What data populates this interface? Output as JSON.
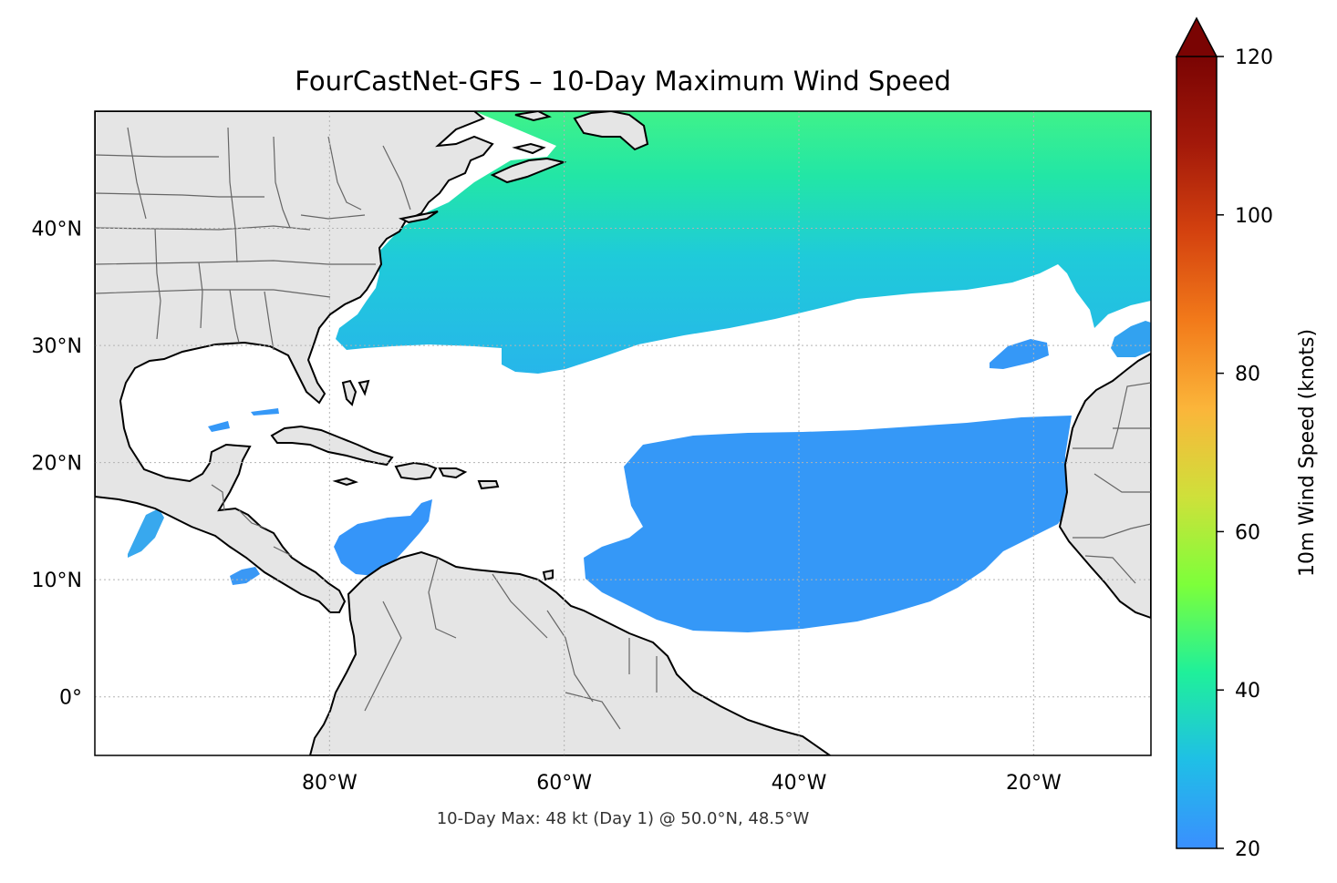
{
  "title": "FourCastNet-GFS – 10-Day Maximum Wind Speed",
  "footer": "10-Day Max: 48 kt (Day 1) @ 50.0°N, 48.5°W",
  "map": {
    "extent_lon": [
      -100,
      -10
    ],
    "extent_lat": [
      -5,
      50
    ],
    "gridlines": true,
    "lon_ticks": [
      {
        "value": -80,
        "label": "80°W"
      },
      {
        "value": -60,
        "label": "60°W"
      },
      {
        "value": -40,
        "label": "40°W"
      },
      {
        "value": -20,
        "label": "20°W"
      }
    ],
    "lat_ticks": [
      {
        "value": 40,
        "label": "40°N"
      },
      {
        "value": 30,
        "label": "30°N"
      },
      {
        "value": 20,
        "label": "20°N"
      },
      {
        "value": 10,
        "label": "10°N"
      },
      {
        "value": 0,
        "label": "0°"
      }
    ],
    "colors": {
      "land": "#e5e5e5",
      "coast": "#000000",
      "borders": "#666666",
      "ocean": "#ffffff"
    }
  },
  "colorbar": {
    "label": "10m Wind Speed (knots)",
    "min": 20,
    "max": 120,
    "extend": "max",
    "ticks": [
      {
        "value": 20,
        "label": "20"
      },
      {
        "value": 40,
        "label": "40"
      },
      {
        "value": 60,
        "label": "60"
      },
      {
        "value": 80,
        "label": "80"
      },
      {
        "value": 100,
        "label": "100"
      },
      {
        "value": 120,
        "label": "120"
      }
    ],
    "colormap": [
      "#3a8fff",
      "#1fbfe6",
      "#1ff09a",
      "#7dff3a",
      "#cfe03a",
      "#fbb53a",
      "#f27a1a",
      "#d4420f",
      "#a3190a",
      "#7a0403"
    ]
  },
  "chart_data": {
    "type": "heatmap",
    "title": "FourCastNet-GFS – 10-Day Maximum Wind Speed",
    "units": "knots",
    "max_value": 48,
    "max_day": 1,
    "max_location": {
      "lat": 50.0,
      "lon": -48.5
    }
  }
}
